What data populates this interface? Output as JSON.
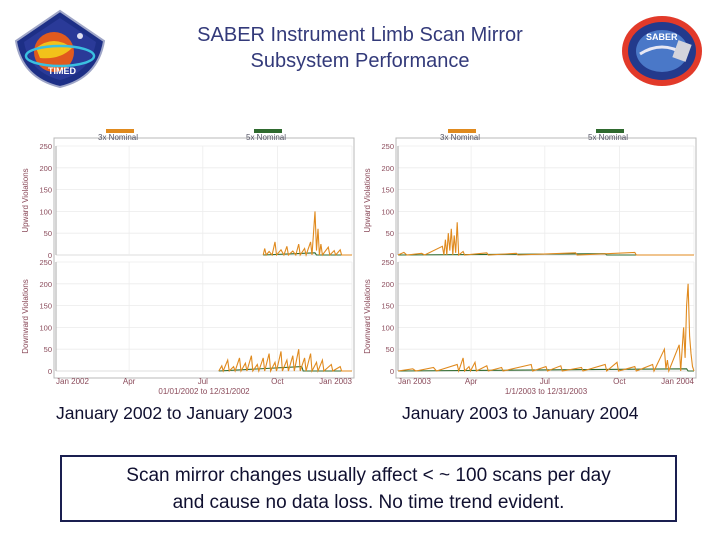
{
  "slide": {
    "title_line1": "SABER Instrument Limb Scan Mirror",
    "title_line2": "Subsystem Performance",
    "left_logo_text": "TIMED",
    "right_logo_text": "SABER",
    "caption_left": "January 2002 to January 2003",
    "caption_right": "January 2003 to January 2004",
    "note_line1": "Scan mirror changes usually affect < ~ 100 scans per day",
    "note_line2": "and cause no data loss.  No time trend evident."
  },
  "colors": {
    "title": "#333a7a",
    "series_3x": "#e08a1e",
    "series_5x": "#2f6a2f",
    "axis_text": "#8a4a5a"
  },
  "chart_data": [
    {
      "type": "line",
      "legend": [
        {
          "name": "3x Nominal",
          "color": "#e08a1e"
        },
        {
          "name": "5x Nominal",
          "color": "#2f6a2f"
        }
      ],
      "date_range_label": "01/01/2002 to 12/31/2002",
      "xticks": [
        {
          "label": "Jan 2002",
          "t": 0
        },
        {
          "label": "Apr",
          "t": 0.247
        },
        {
          "label": "Jul",
          "t": 0.496
        },
        {
          "label": "Oct",
          "t": 0.748
        },
        {
          "label": "Jan 2003",
          "t": 1.0
        }
      ],
      "panels": [
        {
          "ylabel": "Upward Violations",
          "ylim": [
            0,
            250
          ],
          "yticks": [
            0,
            50,
            100,
            150,
            200,
            250
          ],
          "series": [
            {
              "name": "3x Nominal",
              "points": [
                [
                  0.7,
                  0
                ],
                [
                  0.705,
                  15
                ],
                [
                  0.71,
                  0
                ],
                [
                  0.72,
                  8
                ],
                [
                  0.73,
                  0
                ],
                [
                  0.74,
                  30
                ],
                [
                  0.745,
                  0
                ],
                [
                  0.76,
                  12
                ],
                [
                  0.77,
                  0
                ],
                [
                  0.78,
                  20
                ],
                [
                  0.785,
                  0
                ],
                [
                  0.8,
                  9
                ],
                [
                  0.81,
                  0
                ],
                [
                  0.82,
                  25
                ],
                [
                  0.825,
                  0
                ],
                [
                  0.84,
                  15
                ],
                [
                  0.845,
                  0
                ],
                [
                  0.86,
                  30
                ],
                [
                  0.865,
                  0
                ],
                [
                  0.875,
                  100
                ],
                [
                  0.88,
                  10
                ],
                [
                  0.885,
                  60
                ],
                [
                  0.89,
                  0
                ],
                [
                  0.895,
                  25
                ],
                [
                  0.9,
                  0
                ],
                [
                  0.92,
                  18
                ],
                [
                  0.925,
                  0
                ],
                [
                  0.94,
                  10
                ],
                [
                  0.945,
                  0
                ],
                [
                  0.96,
                  12
                ],
                [
                  0.965,
                  0
                ],
                [
                  1.0,
                  0
                ]
              ]
            },
            {
              "name": "5x Nominal",
              "points": [
                [
                  0.7,
                  0
                ],
                [
                  0.875,
                  5
                ],
                [
                  0.88,
                  0
                ],
                [
                  1.0,
                  0
                ]
              ]
            }
          ]
        },
        {
          "ylabel": "Downward Violations",
          "ylim": [
            0,
            250
          ],
          "yticks": [
            0,
            50,
            100,
            150,
            200,
            250
          ],
          "series": [
            {
              "name": "3x Nominal",
              "points": [
                [
                  0.55,
                  0
                ],
                [
                  0.56,
                  12
                ],
                [
                  0.565,
                  0
                ],
                [
                  0.58,
                  25
                ],
                [
                  0.585,
                  0
                ],
                [
                  0.6,
                  10
                ],
                [
                  0.605,
                  0
                ],
                [
                  0.62,
                  30
                ],
                [
                  0.625,
                  0
                ],
                [
                  0.64,
                  18
                ],
                [
                  0.645,
                  0
                ],
                [
                  0.66,
                  35
                ],
                [
                  0.665,
                  0
                ],
                [
                  0.68,
                  15
                ],
                [
                  0.685,
                  0
                ],
                [
                  0.7,
                  30
                ],
                [
                  0.705,
                  0
                ],
                [
                  0.72,
                  40
                ],
                [
                  0.725,
                  0
                ],
                [
                  0.74,
                  20
                ],
                [
                  0.745,
                  0
                ],
                [
                  0.76,
                  45
                ],
                [
                  0.765,
                  0
                ],
                [
                  0.78,
                  25
                ],
                [
                  0.785,
                  0
                ],
                [
                  0.8,
                  35
                ],
                [
                  0.805,
                  0
                ],
                [
                  0.82,
                  50
                ],
                [
                  0.825,
                  0
                ],
                [
                  0.84,
                  30
                ],
                [
                  0.845,
                  0
                ],
                [
                  0.86,
                  40
                ],
                [
                  0.865,
                  0
                ],
                [
                  0.88,
                  20
                ],
                [
                  0.885,
                  0
                ],
                [
                  0.9,
                  25
                ],
                [
                  0.905,
                  0
                ],
                [
                  0.93,
                  15
                ],
                [
                  0.935,
                  0
                ],
                [
                  0.96,
                  10
                ],
                [
                  0.965,
                  0
                ],
                [
                  1.0,
                  0
                ]
              ]
            },
            {
              "name": "5x Nominal",
              "points": [
                [
                  0.55,
                  0
                ],
                [
                  0.83,
                  10
                ],
                [
                  0.835,
                  0
                ],
                [
                  1.0,
                  0
                ]
              ]
            }
          ]
        }
      ]
    },
    {
      "type": "line",
      "legend": [
        {
          "name": "3x Nominal",
          "color": "#e08a1e"
        },
        {
          "name": "5x Nominal",
          "color": "#2f6a2f"
        }
      ],
      "date_range_label": "1/1/2003 to 12/31/2003",
      "xticks": [
        {
          "label": "Jan 2003",
          "t": 0
        },
        {
          "label": "Apr",
          "t": 0.247
        },
        {
          "label": "Jul",
          "t": 0.496
        },
        {
          "label": "Oct",
          "t": 0.748
        },
        {
          "label": "Jan 2004",
          "t": 1.0
        }
      ],
      "panels": [
        {
          "ylabel": "Upward Violations",
          "ylim": [
            0,
            250
          ],
          "yticks": [
            0,
            50,
            100,
            150,
            200,
            250
          ],
          "series": [
            {
              "name": "3x Nominal",
              "points": [
                [
                  0.0,
                  0
                ],
                [
                  0.02,
                  6
                ],
                [
                  0.03,
                  0
                ],
                [
                  0.08,
                  4
                ],
                [
                  0.09,
                  0
                ],
                [
                  0.15,
                  20
                ],
                [
                  0.155,
                  0
                ],
                [
                  0.16,
                  35
                ],
                [
                  0.165,
                  0
                ],
                [
                  0.17,
                  50
                ],
                [
                  0.175,
                  10
                ],
                [
                  0.18,
                  60
                ],
                [
                  0.185,
                  0
                ],
                [
                  0.19,
                  45
                ],
                [
                  0.195,
                  5
                ],
                [
                  0.2,
                  75
                ],
                [
                  0.205,
                  0
                ],
                [
                  0.22,
                  8
                ],
                [
                  0.225,
                  0
                ],
                [
                  0.3,
                  5
                ],
                [
                  0.305,
                  0
                ],
                [
                  0.4,
                  4
                ],
                [
                  0.405,
                  0
                ],
                [
                  0.6,
                  5
                ],
                [
                  0.605,
                  0
                ],
                [
                  0.8,
                  6
                ],
                [
                  0.805,
                  0
                ],
                [
                  1.0,
                  0
                ]
              ]
            },
            {
              "name": "5x Nominal",
              "points": [
                [
                  0.0,
                  0
                ],
                [
                  0.7,
                  3
                ],
                [
                  0.705,
                  0
                ],
                [
                  1.0,
                  0
                ]
              ]
            }
          ]
        },
        {
          "ylabel": "Downward Violations",
          "ylim": [
            0,
            250
          ],
          "yticks": [
            0,
            50,
            100,
            150,
            200,
            250
          ],
          "series": [
            {
              "name": "3x Nominal",
              "points": [
                [
                  0.0,
                  0
                ],
                [
                  0.05,
                  5
                ],
                [
                  0.06,
                  0
                ],
                [
                  0.12,
                  8
                ],
                [
                  0.13,
                  0
                ],
                [
                  0.2,
                  15
                ],
                [
                  0.205,
                  0
                ],
                [
                  0.22,
                  30
                ],
                [
                  0.225,
                  0
                ],
                [
                  0.24,
                  10
                ],
                [
                  0.245,
                  0
                ],
                [
                  0.26,
                  20
                ],
                [
                  0.265,
                  0
                ],
                [
                  0.3,
                  12
                ],
                [
                  0.305,
                  0
                ],
                [
                  0.35,
                  8
                ],
                [
                  0.355,
                  0
                ],
                [
                  0.45,
                  15
                ],
                [
                  0.455,
                  0
                ],
                [
                  0.5,
                  10
                ],
                [
                  0.505,
                  0
                ],
                [
                  0.55,
                  12
                ],
                [
                  0.555,
                  0
                ],
                [
                  0.62,
                  8
                ],
                [
                  0.625,
                  0
                ],
                [
                  0.7,
                  15
                ],
                [
                  0.705,
                  0
                ],
                [
                  0.74,
                  20
                ],
                [
                  0.745,
                  0
                ],
                [
                  0.8,
                  10
                ],
                [
                  0.805,
                  0
                ],
                [
                  0.86,
                  15
                ],
                [
                  0.865,
                  0
                ],
                [
                  0.9,
                  50
                ],
                [
                  0.905,
                  5
                ],
                [
                  0.91,
                  25
                ],
                [
                  0.915,
                  0
                ],
                [
                  0.95,
                  60
                ],
                [
                  0.955,
                  0
                ],
                [
                  0.965,
                  100
                ],
                [
                  0.97,
                  30
                ],
                [
                  0.975,
                  150
                ],
                [
                  0.98,
                  200
                ],
                [
                  0.985,
                  80
                ],
                [
                  0.99,
                  40
                ],
                [
                  0.995,
                  10
                ],
                [
                  1.0,
                  0
                ]
              ]
            },
            {
              "name": "5x Nominal",
              "points": [
                [
                  0.0,
                  0
                ],
                [
                  0.975,
                  5
                ],
                [
                  0.98,
                  0
                ],
                [
                  1.0,
                  0
                ]
              ]
            }
          ]
        }
      ]
    }
  ]
}
